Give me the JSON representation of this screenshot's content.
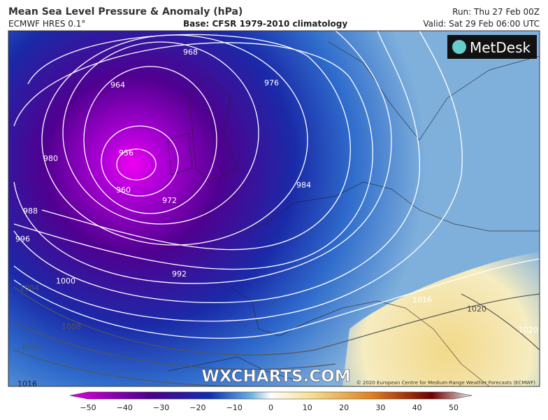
{
  "header": {
    "title": "Mean Sea Level Pressure & Anomaly (hPa)",
    "model": "ECMWF HRES 0.1°",
    "base": "Base: CFSR 1979-2010 climatology",
    "run": "Run: Thu 27 Feb 00Z",
    "valid": "Valid: Sat 29 Feb 06:00 UTC"
  },
  "map": {
    "logo": "MetDesk",
    "watermark": "WXCHARTS.COM",
    "copyright": "© 2020 European Centre for Medium-Range Weather Forecasts (ECMWF)",
    "contour_labels": [
      "956",
      "960",
      "964",
      "968",
      "972",
      "976",
      "980",
      "984",
      "988",
      "992",
      "996",
      "1000",
      "1004",
      "1008",
      "1012",
      "1016",
      "1016",
      "1020",
      "1020"
    ]
  },
  "colorbar": {
    "ticks": [
      "−50",
      "−40",
      "−30",
      "−20",
      "−10",
      "0",
      "10",
      "20",
      "30",
      "40",
      "50"
    ]
  }
}
